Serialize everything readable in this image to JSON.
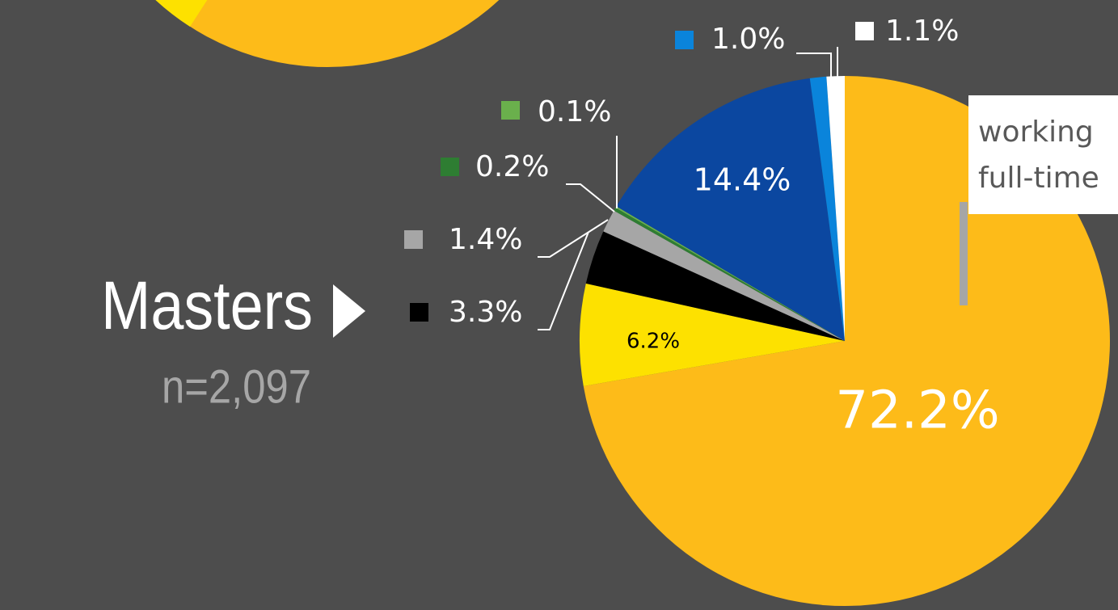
{
  "chart_data": {
    "type": "pie",
    "title": "Masters",
    "subtitle": "n=2,097",
    "annotation": [
      "working",
      "full-time"
    ],
    "values": [
      72.2,
      6.2,
      3.3,
      1.4,
      0.2,
      0.1,
      14.4,
      1.0,
      1.1
    ],
    "value_labels": [
      "72.2%",
      "6.2%",
      "3.3%",
      "1.4%",
      "0.2%",
      "0.1%",
      "14.4%",
      "1.0%",
      "1.1%"
    ],
    "colors": [
      "#fdbb19",
      "#fde100",
      "#000000",
      "#a6a6a6",
      "#2e7d32",
      "#6ab04c",
      "#0b47a0",
      "#0a84db",
      "#ffffff"
    ]
  }
}
